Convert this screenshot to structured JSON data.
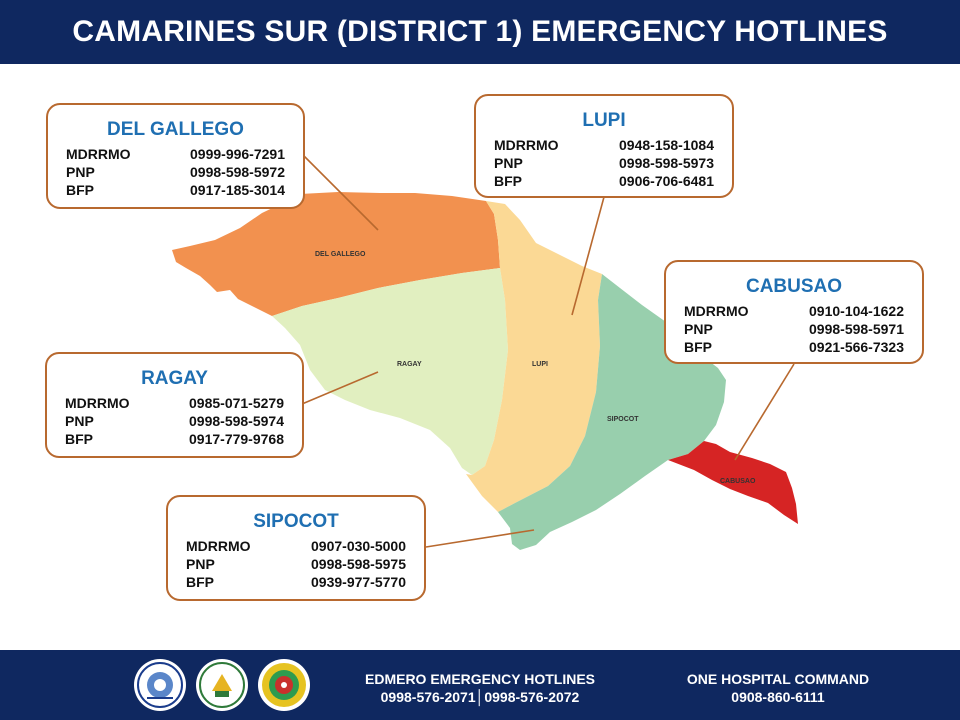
{
  "header": {
    "title": "CAMARINES SUR (DISTRICT 1) EMERGENCY HOTLINES"
  },
  "map": {
    "region_labels": {
      "del_gallego": "DEL GALLEGO",
      "ragay": "RAGAY",
      "lupi": "LUPI",
      "sipocot": "SIPOCOT",
      "cabusao": "CABUSAO"
    },
    "colors": {
      "del_gallego": "#f2914f",
      "ragay": "#e1efc0",
      "lupi": "#fbd995",
      "sipocot": "#98cfad",
      "cabusao": "#d62424",
      "card_border": "#b8692f",
      "card_title": "#1f6fb2",
      "banner": "#0f2860"
    }
  },
  "cards": {
    "del_gallego": {
      "title": "DEL GALLEGO",
      "rows": [
        {
          "agency": "MDRRMO",
          "number": "0999-996-7291"
        },
        {
          "agency": "PNP",
          "number": "0998-598-5972"
        },
        {
          "agency": "BFP",
          "number": "0917-185-3014"
        }
      ]
    },
    "lupi": {
      "title": "LUPI",
      "rows": [
        {
          "agency": "MDRRMO",
          "number": "0948-158-1084"
        },
        {
          "agency": "PNP",
          "number": "0998-598-5973"
        },
        {
          "agency": "BFP",
          "number": "0906-706-6481"
        }
      ]
    },
    "cabusao": {
      "title": "CABUSAO",
      "rows": [
        {
          "agency": "MDRRMO",
          "number": "0910-104-1622"
        },
        {
          "agency": "PNP",
          "number": "0998-598-5971"
        },
        {
          "agency": "BFP",
          "number": "0921-566-7323"
        }
      ]
    },
    "ragay": {
      "title": "RAGAY",
      "rows": [
        {
          "agency": "MDRRMO",
          "number": "0985-071-5279"
        },
        {
          "agency": "PNP",
          "number": "0998-598-5974"
        },
        {
          "agency": "BFP",
          "number": "0917-779-9768"
        }
      ]
    },
    "sipocot": {
      "title": "SIPOCOT",
      "rows": [
        {
          "agency": "MDRRMO",
          "number": "0907-030-5000"
        },
        {
          "agency": "PNP",
          "number": "0998-598-5975"
        },
        {
          "agency": "BFP",
          "number": "0939-977-5770"
        }
      ]
    }
  },
  "footer": {
    "seals": [
      {
        "icon": "province-of-camarines-sur-seal-icon",
        "text": "PROVINCE OF CAMARINES SUR"
      },
      {
        "icon": "official-seal-icon",
        "text": "PROVINCE OF CAMARINES SUR OFFICIAL SEAL"
      },
      {
        "icon": "disaster-management-office-seal-icon",
        "text": ""
      }
    ],
    "edmero": {
      "title": "EDMERO EMERGENCY HOTLINES",
      "numbers": "0998-576-2071│0998-576-2072"
    },
    "hospital": {
      "title": "ONE HOSPITAL COMMAND",
      "number": "0908-860-6111"
    }
  }
}
